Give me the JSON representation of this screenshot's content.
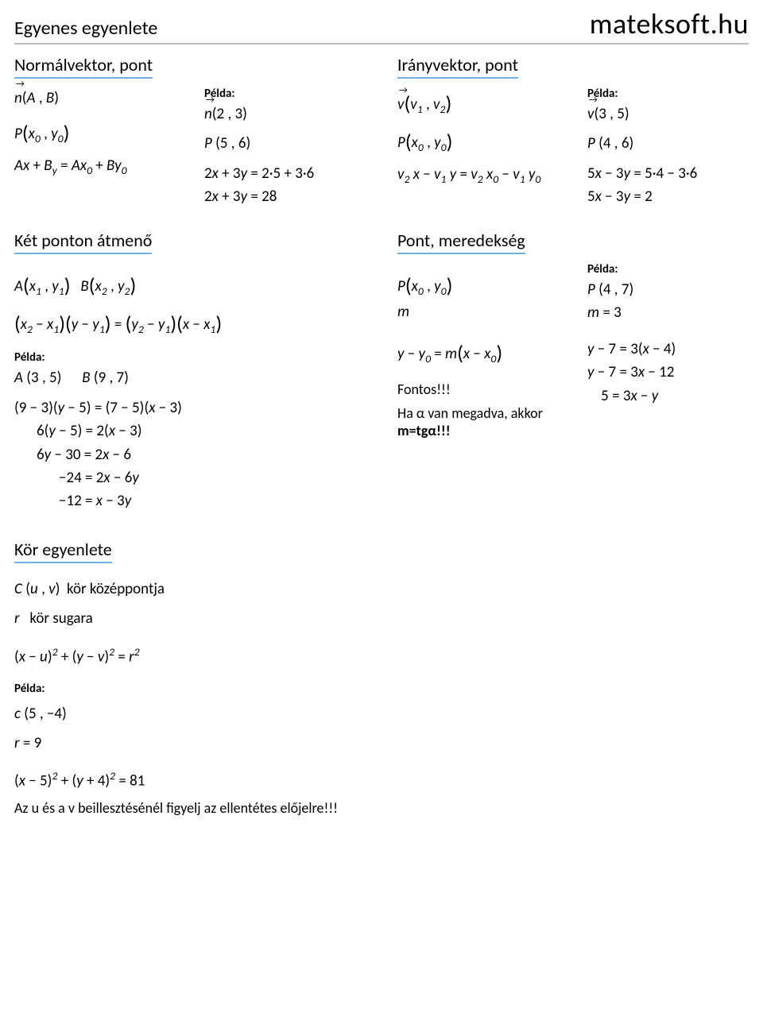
{
  "header": {
    "page_title": "Egyenes egyenlete",
    "brand": "mateksoft.hu"
  },
  "s1": {
    "title": "Normálvektor, pont",
    "example": "Példa:",
    "nv": "n(A , B)",
    "pv": "P( x₀ , y₀ )",
    "eq": "Ax + Bᵧ = Ax₀ + By₀",
    "en": "n(2 , 3)",
    "ep": "P (5 , 6)",
    "ee1": "2x + 3y = 2·5 + 3·6",
    "ee2": "2x + 3y = 28"
  },
  "s2": {
    "title": "Irányvektor, pont",
    "example": "Példa:",
    "vv": "v( v₁ , v₂ )",
    "pv": "P( x₀ , y₀ )",
    "eq": "v₂ x − v₁ y = v₂ x₀ − v₁ y₀",
    "ev": "v(3 , 5)",
    "ep": "P (4 , 6)",
    "ee1": "5x − 3y = 5·4 − 3·6",
    "ee2": "5x − 3y = 2"
  },
  "s3": {
    "title": "Két ponton átmenő",
    "example": "Példa:",
    "a": "A( x₁ , y₁ )",
    "b": "B( x₂ , y₂ )",
    "f": "( x₂ − x₁ )( y − y₁ ) = ( y₂ − y₁ )( x − x₁ )",
    "ea": "A (3 , 5)",
    "eb": "B (9 , 7)",
    "l1": "(9 − 3)(y − 5) = (7 − 5)(x − 3)",
    "l2": "6(y − 5) = 2(x − 3)",
    "l3": "6y − 30 = 2x − 6",
    "l4": "−24 = 2x − 6y",
    "l5": "−12 = x − 3y"
  },
  "s4": {
    "title": "Pont, meredekség",
    "example": "Példa:",
    "p": "P( x₀ , y₀ )",
    "m": "m",
    "f": "y − y₀ = m( x − x₀ )",
    "imp": "Fontos!!!",
    "alpha": "Ha α van megadva, akkor",
    "tg": "m=tgα!!!",
    "ep": "P (4 , 7)",
    "em": "m = 3",
    "e1": "y − 7 = 3(x − 4)",
    "e2": "y − 7 = 3x − 12",
    "e3": "5 = 3x − y"
  },
  "s5": {
    "title": "Kör egyenlete",
    "example": "Példa:",
    "c": "C (u , v)",
    "clab": "kör középpontja",
    "r": "r",
    "rlab": "kör sugara",
    "f": "(x − u)² + (y − v)² = r²",
    "ec": "c (5 , −4)",
    "er": "r = 9",
    "ee": "(x − 5)² + (y + 4)² = 81",
    "note": "Az u és a v beillesztésénél figyelj az ellentétes előjelre!!!"
  }
}
